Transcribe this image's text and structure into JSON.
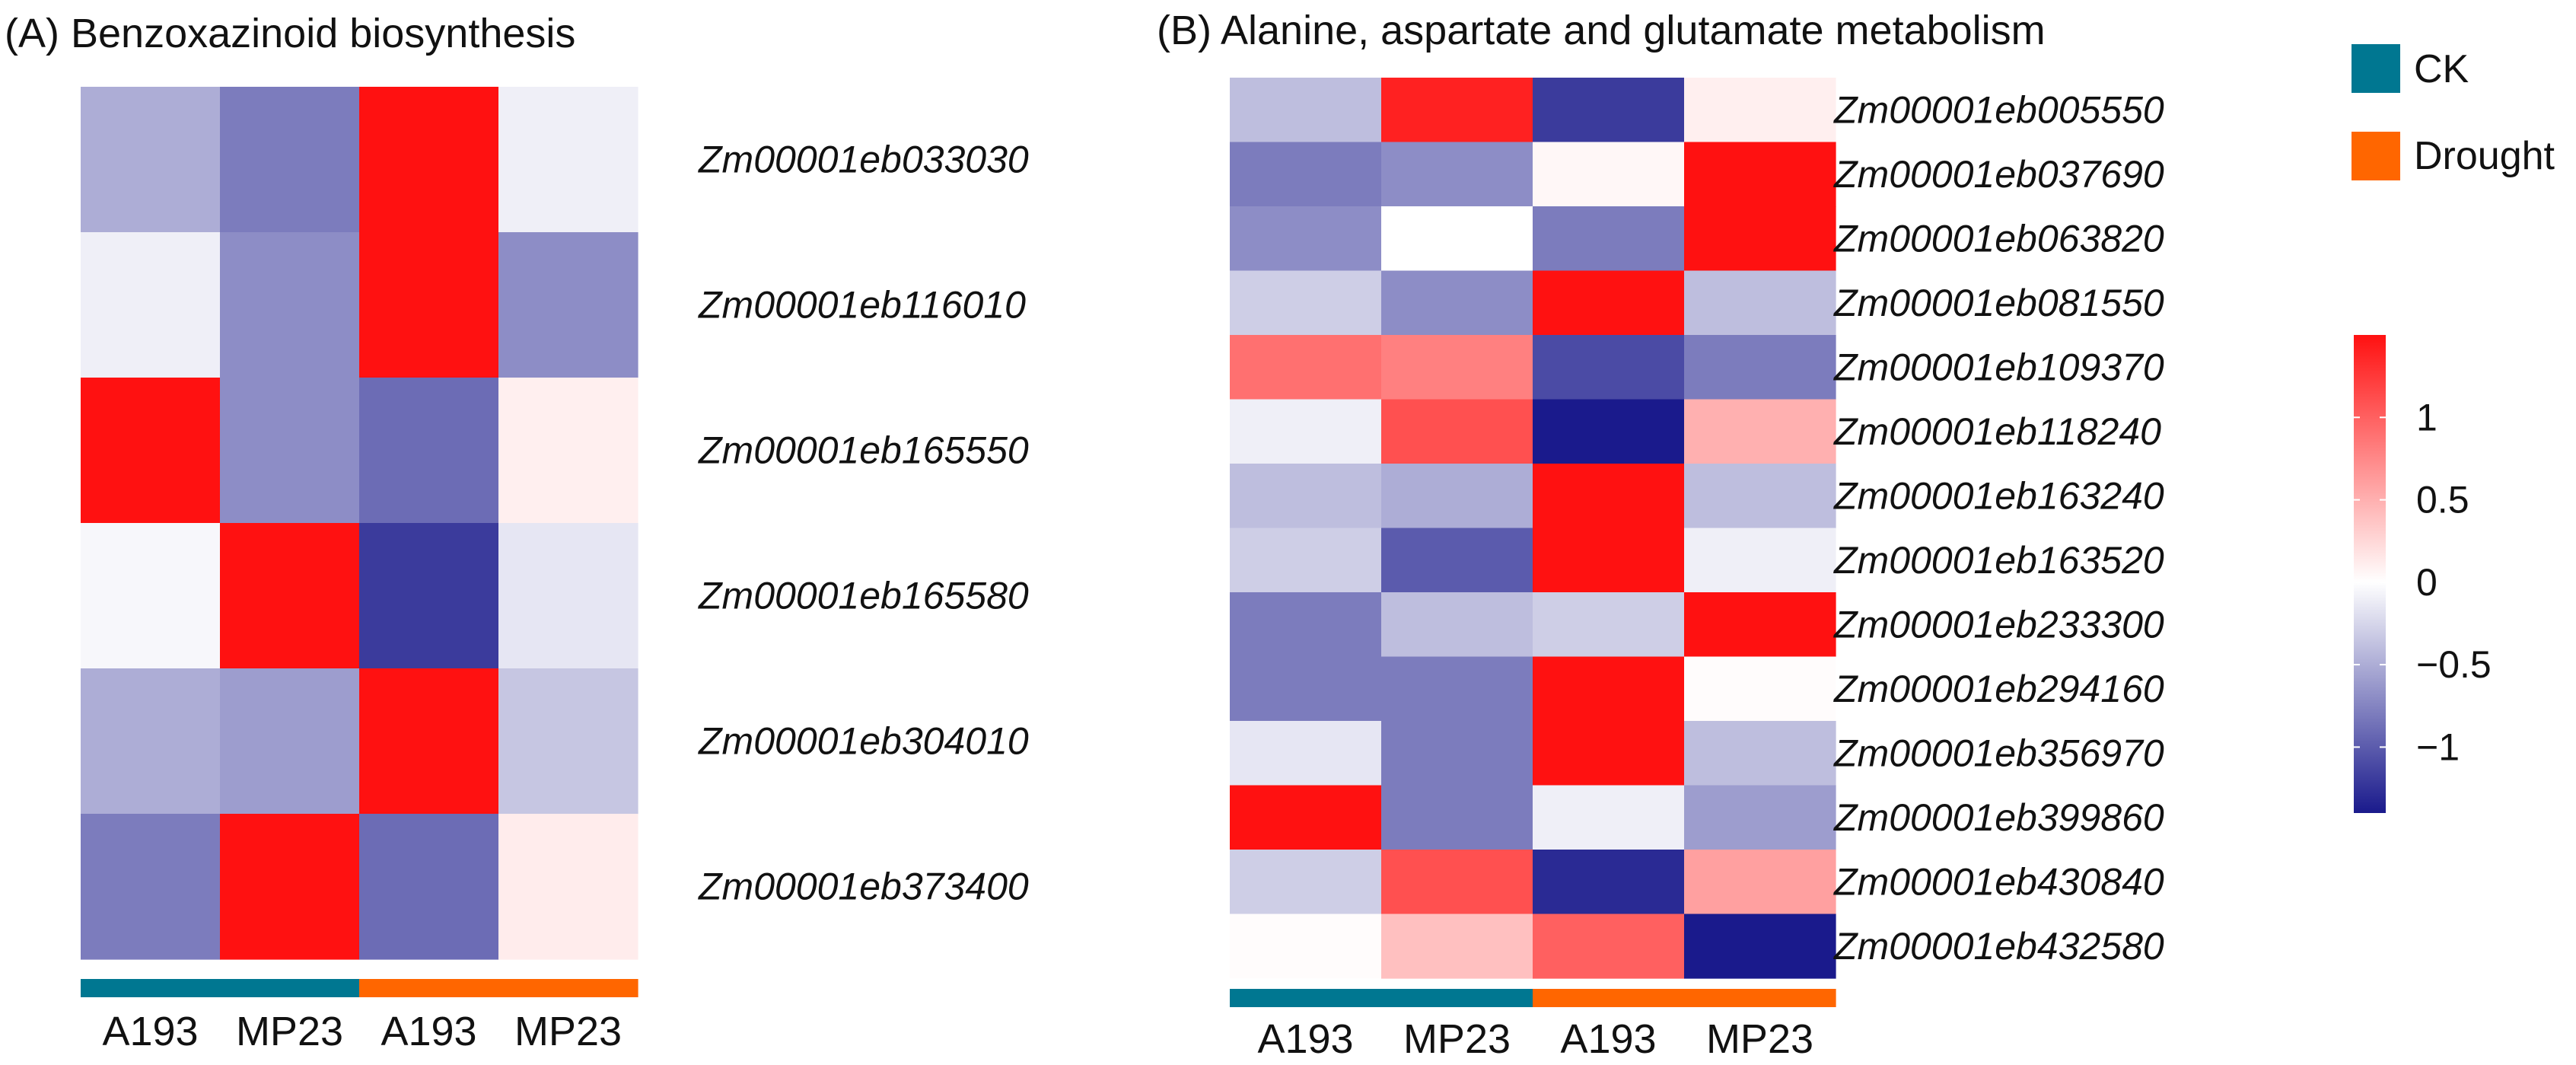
{
  "colors": {
    "ck": "#007791",
    "drought": "#ff6600",
    "low": "#1a1a8c",
    "mid": "#ffffff",
    "high": "#ff1111"
  },
  "group_legend": [
    {
      "label": "CK",
      "color": "#007791"
    },
    {
      "label": "Drought",
      "color": "#ff6600"
    }
  ],
  "colorbar": {
    "range": [
      -1.4,
      1.5
    ],
    "ticks": [
      1,
      0.5,
      0,
      -0.5,
      -1
    ],
    "tick_labels": [
      "1",
      "0.5",
      "0",
      "−0.5",
      "−1"
    ]
  },
  "chart_data": [
    {
      "type": "heatmap",
      "panel": "A",
      "title": "(A) Benzoxazinoid biosynthesis",
      "columns": [
        "A193",
        "MP23",
        "A193",
        "MP23"
      ],
      "column_groups": [
        "CK",
        "CK",
        "Drought",
        "Drought"
      ],
      "rows": [
        "Zm00001eb033030",
        "Zm00001eb116010",
        "Zm00001eb165550",
        "Zm00001eb165580",
        "Zm00001eb304010",
        "Zm00001eb373400"
      ],
      "values": [
        [
          -0.5,
          -0.8,
          1.5,
          -0.1
        ],
        [
          -0.1,
          -0.7,
          1.5,
          -0.7
        ],
        [
          1.5,
          -0.7,
          -0.9,
          0.1
        ],
        [
          -0.05,
          1.5,
          -1.2,
          -0.15
        ],
        [
          -0.5,
          -0.6,
          1.5,
          -0.35
        ],
        [
          -0.8,
          1.5,
          -0.9,
          0.12
        ]
      ]
    },
    {
      "type": "heatmap",
      "panel": "B",
      "title": "(B) Alanine, aspartate and glutamate metabolism",
      "columns": [
        "A193",
        "MP23",
        "A193",
        "MP23"
      ],
      "column_groups": [
        "CK",
        "CK",
        "Drought",
        "Drought"
      ],
      "rows": [
        "Zm00001eb005550",
        "Zm00001eb037690",
        "Zm00001eb063820",
        "Zm00001eb081550",
        "Zm00001eb109370",
        "Zm00001eb118240",
        "Zm00001eb163240",
        "Zm00001eb163520",
        "Zm00001eb233300",
        "Zm00001eb294160",
        "Zm00001eb356970",
        "Zm00001eb399860",
        "Zm00001eb430840",
        "Zm00001eb432580"
      ],
      "values": [
        [
          -0.4,
          1.4,
          -1.2,
          0.1
        ],
        [
          -0.8,
          -0.7,
          0.05,
          1.5
        ],
        [
          -0.7,
          0.0,
          -0.8,
          1.5
        ],
        [
          -0.3,
          -0.7,
          1.5,
          -0.4
        ],
        [
          0.9,
          0.8,
          -1.1,
          -0.8
        ],
        [
          -0.1,
          1.1,
          -1.4,
          0.5
        ],
        [
          -0.4,
          -0.5,
          1.5,
          -0.4
        ],
        [
          -0.3,
          -1.0,
          1.5,
          -0.1
        ],
        [
          -0.8,
          -0.4,
          -0.3,
          1.5
        ],
        [
          -0.8,
          -0.8,
          1.5,
          0.02
        ],
        [
          -0.15,
          -0.8,
          1.5,
          -0.4
        ],
        [
          1.5,
          -0.8,
          -0.1,
          -0.6
        ],
        [
          -0.3,
          1.1,
          -1.3,
          0.6
        ],
        [
          0.02,
          0.4,
          1.0,
          -1.4
        ]
      ]
    }
  ]
}
